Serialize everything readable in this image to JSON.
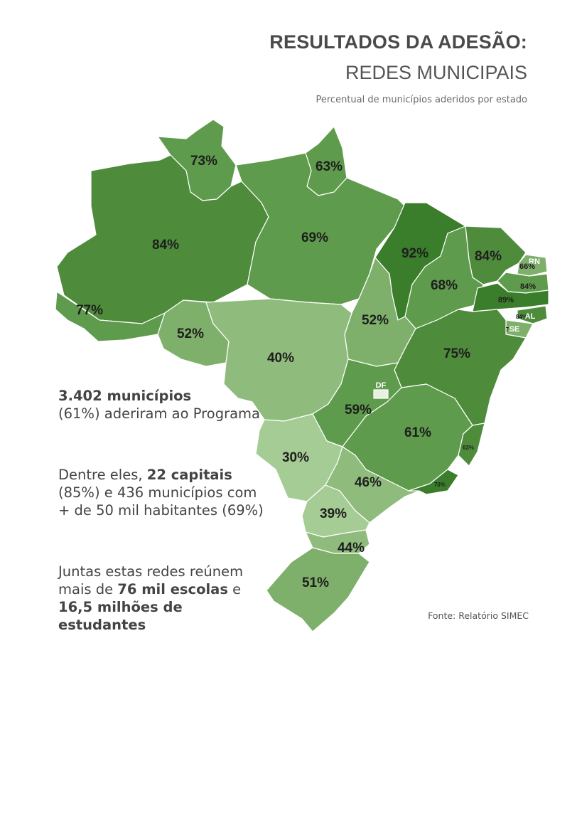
{
  "header": {
    "title": "RESULTADOS DA ADESÃO:",
    "subtitle": "REDES MUNICIPAIS",
    "caption": "Percentual de municípios aderidos por estado"
  },
  "colors": {
    "darkest": "#3a7d2a",
    "dark": "#4e8c3c",
    "medium": "#5f9b4c",
    "light": "#7fb06b",
    "lighter": "#8fbc7d",
    "lightest": "#a4cc94"
  },
  "map": {
    "states": [
      {
        "name": "RR",
        "value": "73%"
      },
      {
        "name": "AP",
        "value": "63%"
      },
      {
        "name": "AM",
        "value": "84%"
      },
      {
        "name": "PA",
        "value": "69%"
      },
      {
        "name": "MA",
        "value": "92%"
      },
      {
        "name": "CE",
        "value": "84%"
      },
      {
        "name": "RN",
        "value": "66%",
        "tag": "RN"
      },
      {
        "name": "PB",
        "value": "84%"
      },
      {
        "name": "PI",
        "value": "68%"
      },
      {
        "name": "PE",
        "value": "89%"
      },
      {
        "name": "AL",
        "value": "84%",
        "tag": "AL"
      },
      {
        "name": "SE",
        "value": "7",
        "tag": "SE"
      },
      {
        "name": "AC",
        "value": "77%"
      },
      {
        "name": "RO",
        "value": "52%"
      },
      {
        "name": "TO",
        "value": "52%"
      },
      {
        "name": "MT",
        "value": "40%"
      },
      {
        "name": "BA",
        "value": "75%"
      },
      {
        "name": "DF",
        "value": "",
        "tag": "DF"
      },
      {
        "name": "GO",
        "value": "59%"
      },
      {
        "name": "MG",
        "value": "61%"
      },
      {
        "name": "ES",
        "value": "63%"
      },
      {
        "name": "MS",
        "value": "30%"
      },
      {
        "name": "SP",
        "value": "46%"
      },
      {
        "name": "RJ",
        "value": "70%"
      },
      {
        "name": "PR",
        "value": "39%"
      },
      {
        "name": "SC",
        "value": "44%"
      },
      {
        "name": "RS",
        "value": "51%"
      }
    ]
  },
  "stats": {
    "s1_bold": "3.402 municípios",
    "s1_rest": "(61%) aderiram ao Programa",
    "s2_pre": "Dentre eles, ",
    "s2_bold": "22 capitais",
    "s2_rest": "(85%) e 436 municípios com + de 50 mil habitantes (69%)",
    "s3_pre": "Juntas estas redes reúnem mais de ",
    "s3_bold1": "76 mil escolas",
    "s3_mid": " e ",
    "s3_bold2": "16,5 milhões de estudantes"
  },
  "source": "Fonte: Relatório SIMEC"
}
